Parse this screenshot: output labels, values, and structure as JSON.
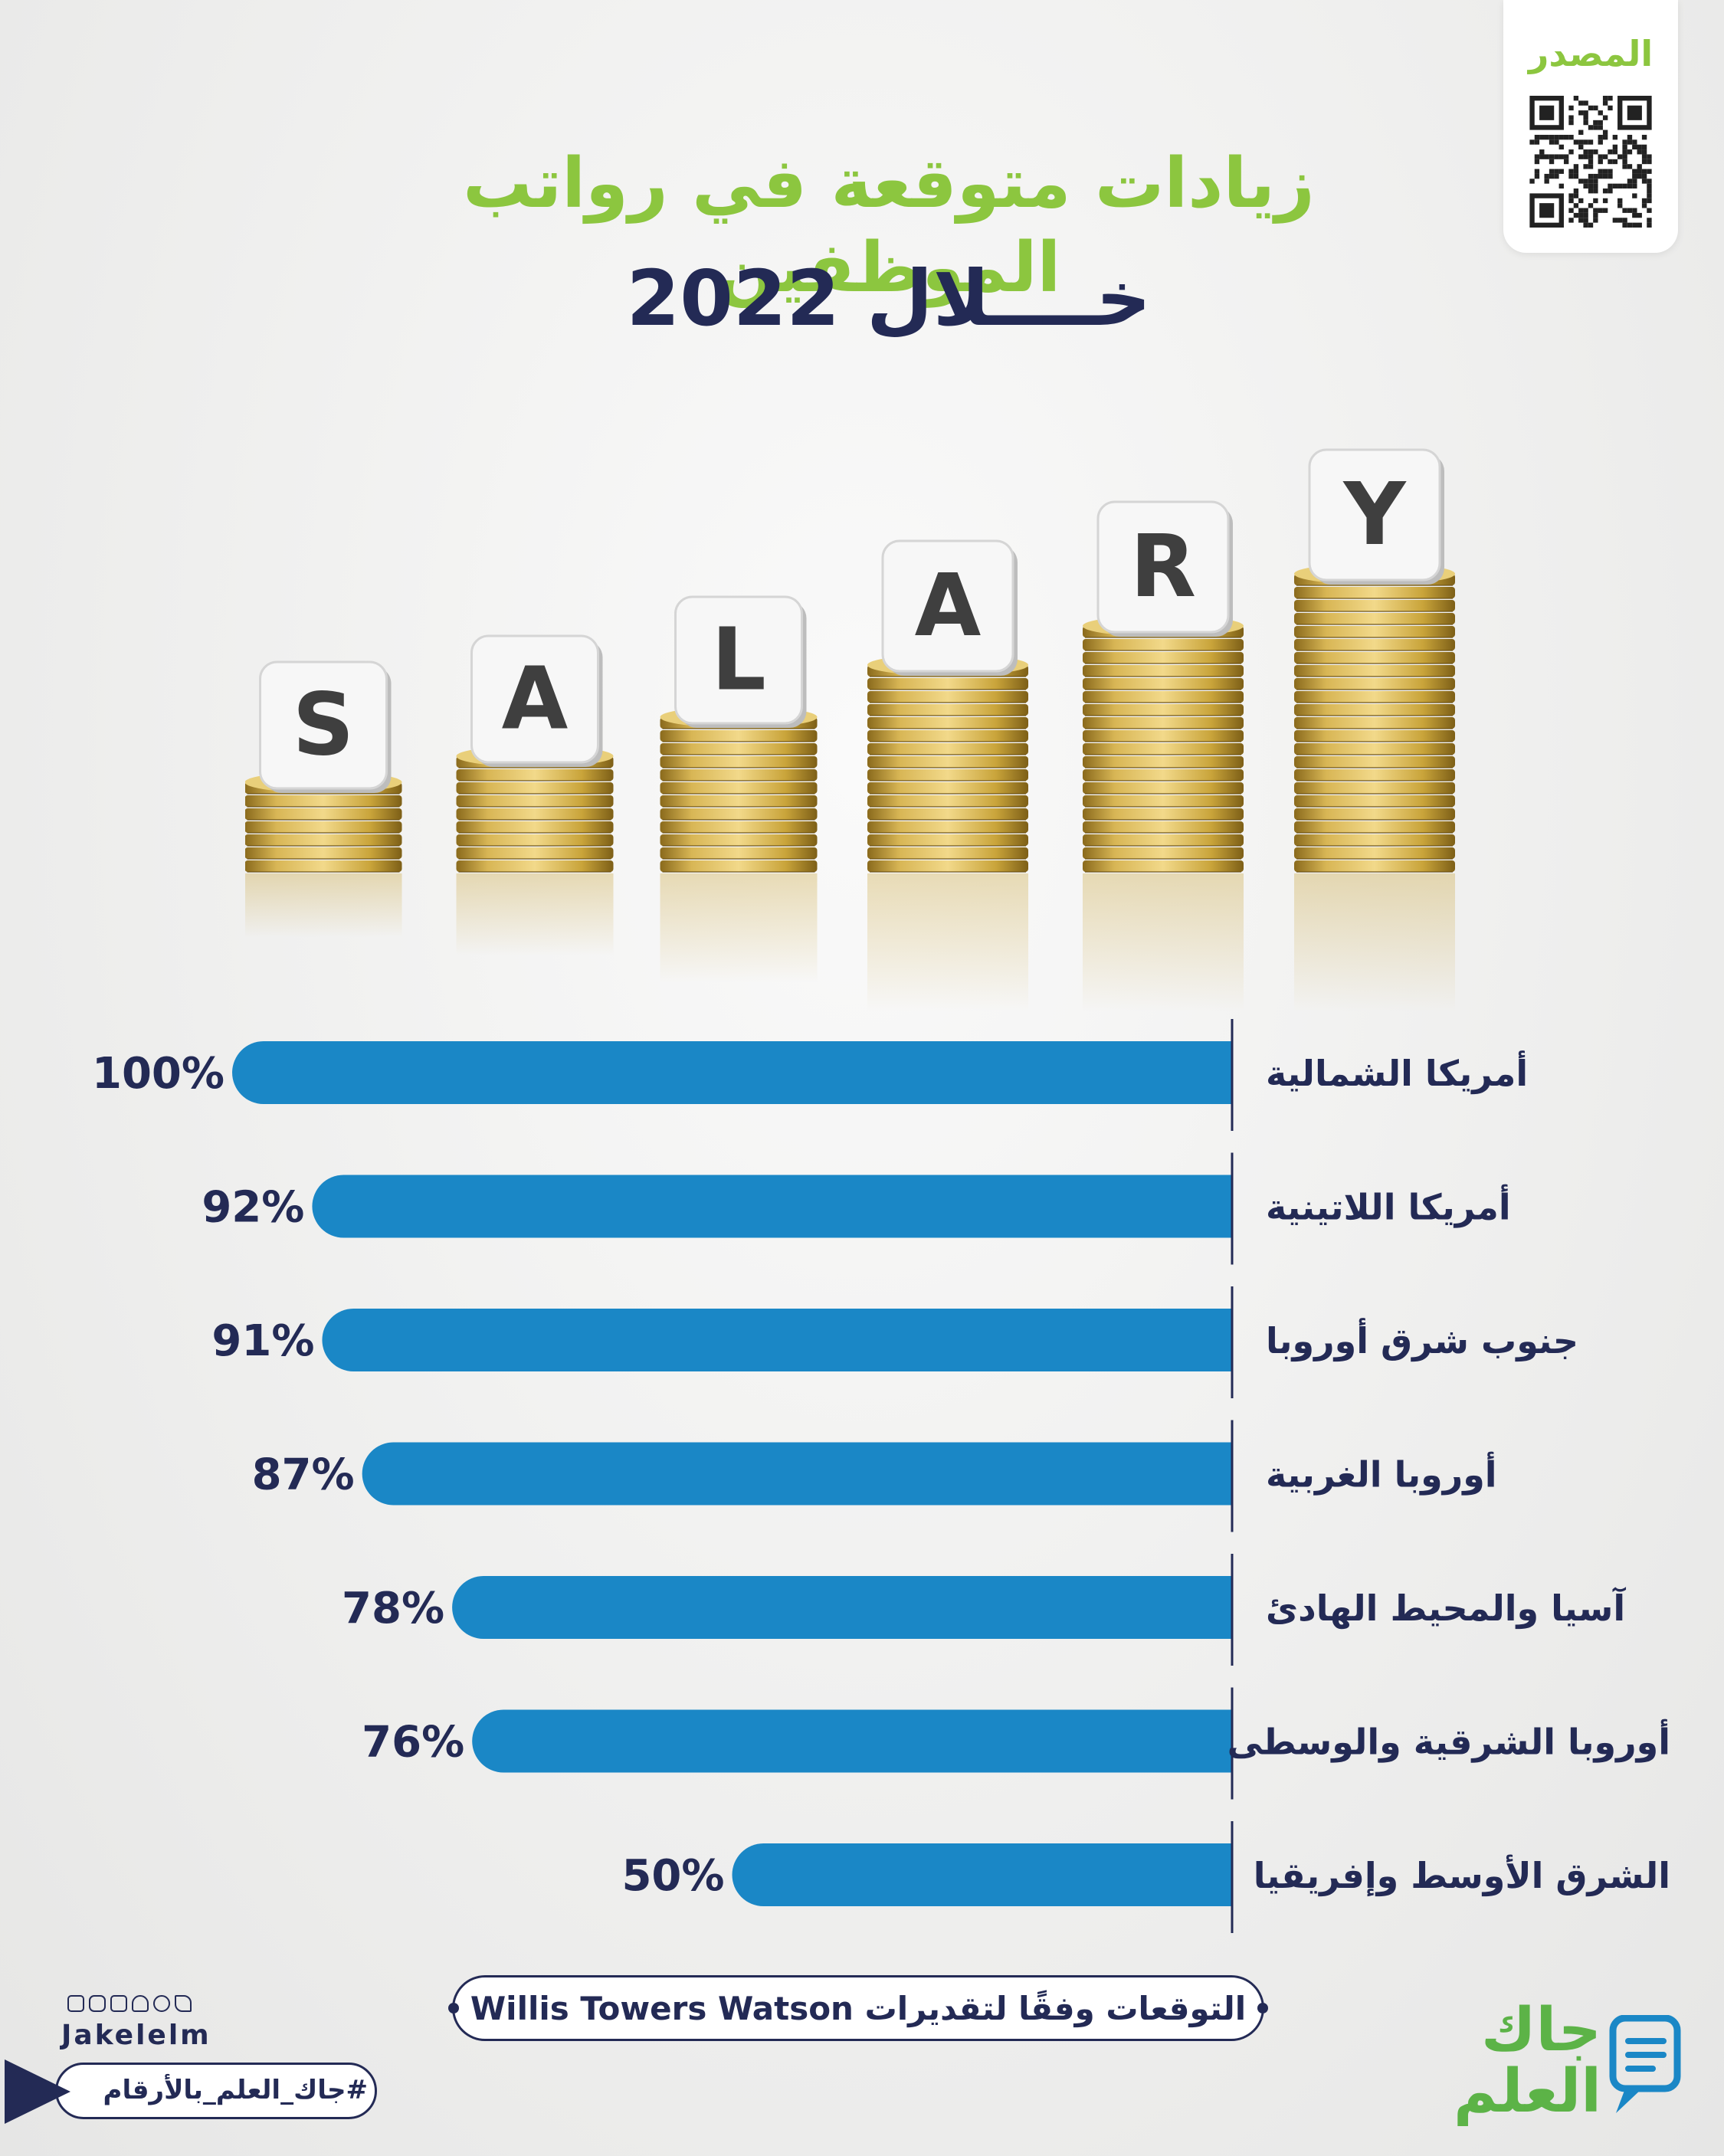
{
  "header": {
    "source_label": "المصدر",
    "title_line1": "زيادات متوقعة في رواتب الموظفين",
    "title_line2": "خــــلال 2022"
  },
  "illustration": {
    "dice_letters": [
      "S",
      "A",
      "L",
      "A",
      "R",
      "Y"
    ],
    "coin_color": "#c9a43a"
  },
  "chart_data": {
    "type": "bar",
    "orientation": "horizontal",
    "categories": [
      "أمريكا الشمالية",
      "أمريكا اللاتينية",
      "جنوب شرق أوروبا",
      "أوروبا الغربية",
      "آسيا والمحيط الهادئ",
      "أوروبا الشرقية والوسطى",
      "الشرق الأوسط وإفريقيا"
    ],
    "values": [
      100,
      92,
      91,
      87,
      78,
      76,
      50
    ],
    "value_labels": [
      "100%",
      "92%",
      "91%",
      "87%",
      "78%",
      "76%",
      "50%"
    ],
    "xlim": [
      0,
      100
    ],
    "bar_color": "#1a87c6",
    "grid": false
  },
  "footer": {
    "note": "التوقعات وفقًا لتقديرات Willis Towers Watson",
    "brand_handle": "Jakelelm",
    "hashtag": "#جاك_العلم_بالأرقام",
    "logo_text": "جاك العلم",
    "social_icons": [
      "facebook-icon",
      "instagram-icon",
      "linkedin-icon",
      "snapchat-icon",
      "twitter-icon",
      "telegram-icon"
    ]
  },
  "colors": {
    "navy": "#232a55",
    "green": "#8cc63f",
    "blue": "#1a87c6"
  }
}
